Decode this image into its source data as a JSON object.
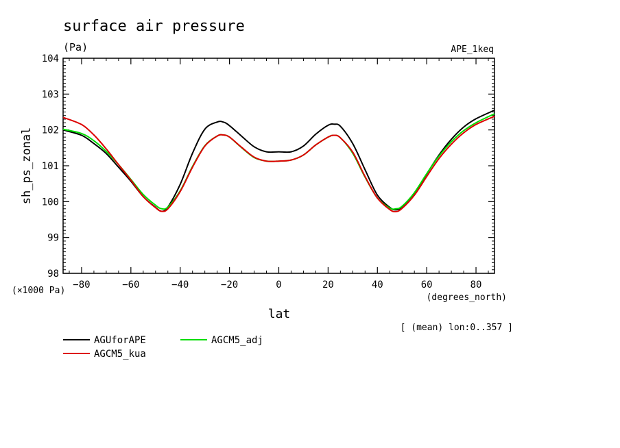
{
  "chart_data": {
    "type": "line",
    "title": "surface air pressure",
    "units": "(Pa)",
    "experiment": "APE_1keq",
    "ylabel": "sh_ps_zonal",
    "xlabel": "lat",
    "x_units": "(degrees_north)",
    "y_scale_note": "(×1000 Pa)",
    "subset_note": "[ (mean) lon:0..357 ]",
    "xlim": [
      -87.5,
      87.5
    ],
    "ylim": [
      98,
      104
    ],
    "x_ticks": [
      -80,
      -60,
      -40,
      -20,
      0,
      20,
      40,
      60,
      80
    ],
    "x_tick_labels": [
      "−80",
      "−60",
      "−40",
      "−20",
      "0",
      "20",
      "40",
      "60",
      "80"
    ],
    "y_ticks": [
      98,
      99,
      100,
      101,
      102,
      103,
      104
    ],
    "y_tick_labels": [
      "98",
      "99",
      "100",
      "101",
      "102",
      "103",
      "104"
    ],
    "series": [
      {
        "name": "AGUforAPE",
        "color": "#000000",
        "x": [
          -87.5,
          -80,
          -75,
          -70,
          -65,
          -60,
          -55,
          -50,
          -47.5,
          -45,
          -40,
          -35,
          -30,
          -25,
          -22.5,
          -20,
          -15,
          -10,
          -5,
          0,
          5,
          10,
          15,
          20,
          22.5,
          25,
          30,
          35,
          40,
          45,
          47.5,
          50,
          55,
          60,
          65,
          70,
          75,
          80,
          87.5
        ],
        "y": [
          102.0,
          101.85,
          101.62,
          101.34,
          100.96,
          100.57,
          100.14,
          99.84,
          99.73,
          99.85,
          100.48,
          101.35,
          102.02,
          102.22,
          102.22,
          102.12,
          101.82,
          101.53,
          101.39,
          101.39,
          101.39,
          101.55,
          101.88,
          102.13,
          102.16,
          102.1,
          101.62,
          100.89,
          100.18,
          99.84,
          99.77,
          99.86,
          100.24,
          100.77,
          101.3,
          101.74,
          102.08,
          102.31,
          102.55
        ]
      },
      {
        "name": "AGCM5_kua",
        "color": "#dd0000",
        "x": [
          -87.5,
          -80,
          -75,
          -70,
          -65,
          -60,
          -55,
          -50,
          -47.5,
          -45,
          -40,
          -35,
          -30,
          -25,
          -22.5,
          -20,
          -15,
          -10,
          -5,
          0,
          5,
          10,
          15,
          20,
          22.5,
          25,
          30,
          35,
          40,
          45,
          47.5,
          50,
          55,
          60,
          65,
          70,
          75,
          80,
          87.5
        ],
        "y": [
          102.35,
          102.15,
          101.86,
          101.47,
          101.03,
          100.6,
          100.14,
          99.83,
          99.73,
          99.8,
          100.28,
          100.96,
          101.55,
          101.83,
          101.86,
          101.8,
          101.51,
          101.24,
          101.13,
          101.13,
          101.16,
          101.3,
          101.58,
          101.8,
          101.85,
          101.78,
          101.38,
          100.7,
          100.1,
          99.78,
          99.72,
          99.81,
          100.18,
          100.7,
          101.2,
          101.6,
          101.92,
          102.15,
          102.38
        ]
      },
      {
        "name": "AGCM5_adj",
        "color": "#00dd00",
        "x": [
          -87.5,
          -80,
          -75,
          -70,
          -65,
          -60,
          -55,
          -50,
          -47.5,
          -45,
          -40,
          -35,
          -30,
          -25,
          -22.5,
          -20,
          -15,
          -10,
          -5,
          0,
          5,
          10,
          15,
          20,
          22.5,
          25,
          30,
          35,
          40,
          45,
          47.5,
          50,
          55,
          60,
          65,
          70,
          75,
          80,
          87.5
        ],
        "y": [
          102.02,
          101.9,
          101.7,
          101.4,
          101.03,
          100.62,
          100.2,
          99.9,
          99.8,
          99.85,
          100.3,
          100.98,
          101.56,
          101.83,
          101.86,
          101.8,
          101.5,
          101.23,
          101.13,
          101.13,
          101.16,
          101.3,
          101.58,
          101.8,
          101.85,
          101.78,
          101.35,
          100.68,
          100.1,
          99.82,
          99.8,
          99.87,
          100.25,
          100.78,
          101.27,
          101.67,
          101.98,
          102.2,
          102.45
        ]
      }
    ]
  }
}
